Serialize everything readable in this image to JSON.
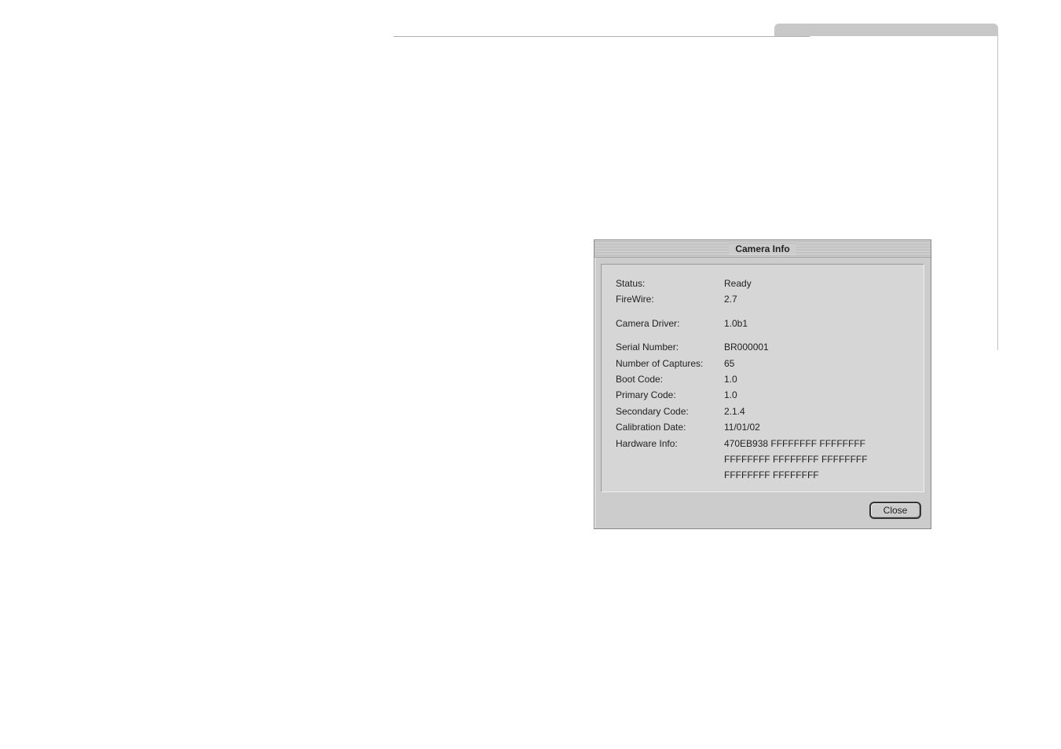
{
  "dialog": {
    "title": "Camera Info",
    "close_label": "Close",
    "rows": {
      "status": {
        "label": "Status:",
        "value": "Ready"
      },
      "firewire": {
        "label": "FireWire:",
        "value": "2.7"
      },
      "camera_driver": {
        "label": "Camera Driver:",
        "value": "1.0b1"
      },
      "serial_number": {
        "label": "Serial Number:",
        "value": "BR000001"
      },
      "num_captures": {
        "label": "Number of Captures:",
        "value": "65"
      },
      "boot_code": {
        "label": "Boot Code:",
        "value": "1.0"
      },
      "primary_code": {
        "label": "Primary Code:",
        "value": "1.0"
      },
      "secondary_code": {
        "label": "Secondary Code:",
        "value": "2.1.4"
      },
      "calibration_date": {
        "label": "Calibration Date:",
        "value": "11/01/02"
      },
      "hardware_info": {
        "label": "Hardware Info:",
        "value": "470EB938 FFFFFFFF FFFFFFFF FFFFFFFF FFFFFFFF FFFFFFFF FFFFFFFF FFFFFFFF"
      }
    }
  },
  "colors": {
    "dialog_bg": "#cccccc",
    "body_bg": "#d6d6d6",
    "text": "#222222",
    "border_dark": "#888888",
    "border_light": "#eeeeee"
  }
}
